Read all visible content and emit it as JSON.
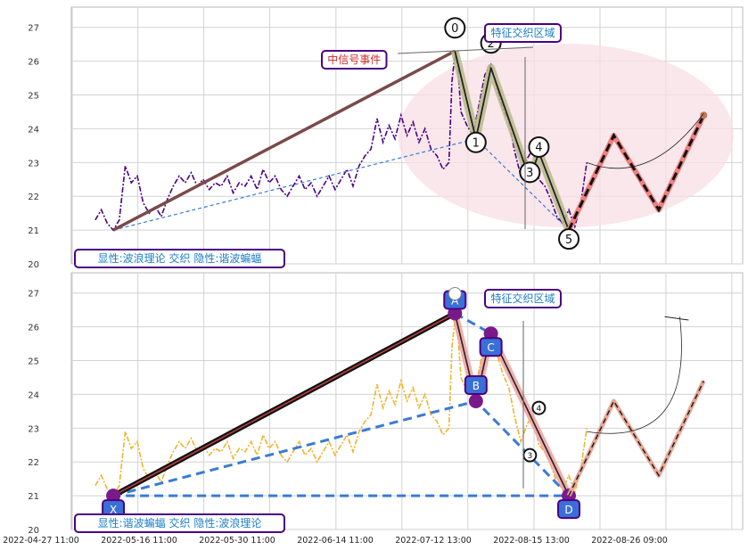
{
  "chart_data": {
    "type": "line",
    "x_ticks": [
      "2022-04-27 11:00",
      "2022-05-16 11:00",
      "2022-05-30 11:00",
      "2022-06-14 11:00",
      "2022-07-12 13:00",
      "2022-08-15 13:00",
      "2022-08-26 09:00"
    ],
    "y_ticks": [
      "20",
      "21",
      "22",
      "23",
      "24",
      "25",
      "26",
      "27"
    ],
    "ylim": [
      20,
      27.6
    ],
    "grid": true,
    "colors": {
      "price_top": "#4b0082",
      "price_bottom": "#f0b429",
      "trend_line": "#7a4a4a",
      "dash_blue": "#3a7bd5",
      "wave_fill": "#b9b98a",
      "forecast_red": "#f08080",
      "forecast_brown": "#c0785a",
      "ellipse": "#f7dfe4",
      "label_border": "#4b0082",
      "label_text": "#1f7fc4",
      "event_text": "#cc2a2a",
      "xabcd_box": "#3a6fd8"
    },
    "price_series": [
      [
        0,
        21.3
      ],
      [
        2,
        21.6
      ],
      [
        4,
        21.2
      ],
      [
        6,
        21.0
      ],
      [
        8,
        21.3
      ],
      [
        10,
        22.9
      ],
      [
        12,
        22.4
      ],
      [
        14,
        22.6
      ],
      [
        16,
        21.8
      ],
      [
        18,
        21.5
      ],
      [
        20,
        21.7
      ],
      [
        22,
        21.4
      ],
      [
        24,
        21.9
      ],
      [
        26,
        22.3
      ],
      [
        28,
        22.6
      ],
      [
        30,
        22.4
      ],
      [
        32,
        22.7
      ],
      [
        34,
        22.3
      ],
      [
        36,
        22.5
      ],
      [
        38,
        22.2
      ],
      [
        40,
        22.4
      ],
      [
        42,
        22.3
      ],
      [
        44,
        22.6
      ],
      [
        46,
        22.1
      ],
      [
        48,
        22.4
      ],
      [
        50,
        22.3
      ],
      [
        52,
        22.6
      ],
      [
        54,
        22.2
      ],
      [
        56,
        22.8
      ],
      [
        58,
        22.4
      ],
      [
        60,
        22.6
      ],
      [
        62,
        22.2
      ],
      [
        64,
        22.0
      ],
      [
        66,
        22.3
      ],
      [
        68,
        22.6
      ],
      [
        70,
        22.2
      ],
      [
        72,
        22.4
      ],
      [
        74,
        22.0
      ],
      [
        76,
        22.3
      ],
      [
        78,
        22.6
      ],
      [
        80,
        22.2
      ],
      [
        82,
        22.5
      ],
      [
        84,
        22.8
      ],
      [
        86,
        22.3
      ],
      [
        88,
        22.9
      ],
      [
        90,
        23.2
      ],
      [
        92,
        23.4
      ],
      [
        94,
        24.3
      ],
      [
        96,
        23.6
      ],
      [
        98,
        24.1
      ],
      [
        100,
        23.7
      ],
      [
        102,
        24.4
      ],
      [
        104,
        23.8
      ],
      [
        106,
        24.2
      ],
      [
        108,
        23.6
      ],
      [
        110,
        24.0
      ],
      [
        112,
        23.4
      ],
      [
        114,
        23.2
      ],
      [
        116,
        22.8
      ],
      [
        118,
        23.0
      ],
      [
        119,
        25.4
      ],
      [
        120,
        26.2
      ],
      [
        121,
        25.8
      ],
      [
        122,
        24.5
      ],
      [
        124,
        24.1
      ],
      [
        126,
        23.8
      ],
      [
        128,
        24.7
      ],
      [
        130,
        25.6
      ],
      [
        132,
        25.9
      ],
      [
        134,
        25.2
      ],
      [
        136,
        24.6
      ],
      [
        138,
        24.2
      ],
      [
        140,
        23.3
      ],
      [
        142,
        22.6
      ],
      [
        144,
        23.1
      ],
      [
        146,
        23.4
      ],
      [
        148,
        22.5
      ],
      [
        150,
        22.3
      ],
      [
        152,
        21.9
      ],
      [
        154,
        21.4
      ],
      [
        156,
        21.2
      ],
      [
        158,
        21.6
      ],
      [
        160,
        21.1
      ],
      [
        162,
        21.8
      ],
      [
        164,
        23.0
      ]
    ],
    "panels": [
      {
        "style_label": "显性:波浪理论 交织 隐性:谐波蝙蝠",
        "zone_label": "特征交织区域",
        "event_label": "中信号事件",
        "wave_points": [
          {
            "name": "0",
            "x": 120,
            "y": 26.3
          },
          {
            "name": "1",
            "x": 127,
            "y": 23.7
          },
          {
            "name": "2",
            "x": 132,
            "y": 25.8
          },
          {
            "name": "3",
            "x": 145,
            "y": 22.5
          },
          {
            "name": "4",
            "x": 148,
            "y": 23.3
          },
          {
            "name": "5",
            "x": 158,
            "y": 21.0
          }
        ],
        "trend_start": [
          6,
          21.0
        ],
        "forecast": [
          [
            158,
            21.0
          ],
          [
            173,
            23.8
          ],
          [
            188,
            21.6
          ],
          [
            203,
            24.4
          ]
        ]
      },
      {
        "style_label": "显性:谐波蝙蝠 交织 隐性:波浪理论",
        "zone_label": "特征交织区域",
        "harmonic_points": [
          {
            "name": "X",
            "x": 6,
            "y": 21.0
          },
          {
            "name": "A",
            "x": 120,
            "y": 26.4
          },
          {
            "name": "B",
            "x": 127,
            "y": 23.8
          },
          {
            "name": "C",
            "x": 132,
            "y": 25.8
          },
          {
            "name": "D",
            "x": 158,
            "y": 21.0
          }
        ],
        "minor_labels": [
          {
            "name": "4",
            "x": 148,
            "y": 23.6
          },
          {
            "name": "3",
            "x": 145,
            "y": 22.2
          }
        ],
        "forecast": [
          [
            158,
            21.0
          ],
          [
            173,
            23.8
          ],
          [
            188,
            21.6
          ],
          [
            203,
            24.4
          ]
        ]
      }
    ]
  }
}
